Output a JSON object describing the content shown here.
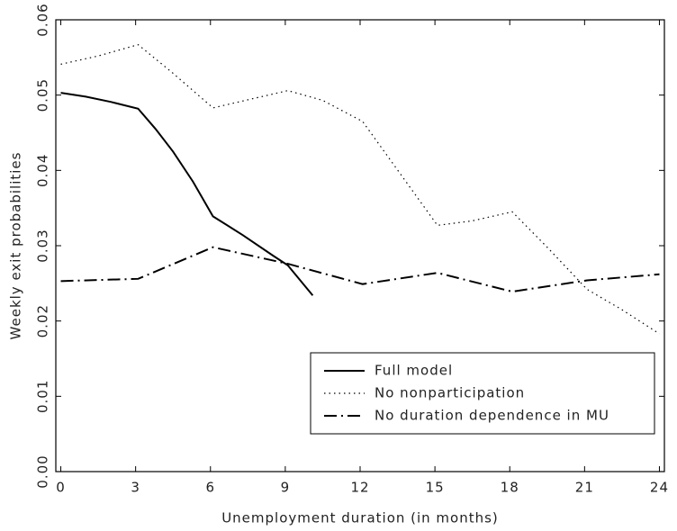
{
  "chart_data": {
    "type": "line",
    "xlabel": "Unemployment duration (in months)",
    "ylabel": "Weekly exit probabilities",
    "xlim": [
      -0.2,
      24.2
    ],
    "ylim": [
      0,
      0.06
    ],
    "xticks": [
      0,
      3,
      6,
      9,
      12,
      15,
      18,
      21,
      24
    ],
    "yticks": [
      {
        "value": 0,
        "label": "0.00"
      },
      {
        "value": 0.01,
        "label": "0.01"
      },
      {
        "value": 0.02,
        "label": "0.02"
      },
      {
        "value": 0.03,
        "label": "0.03"
      },
      {
        "value": 0.04,
        "label": "0.04"
      },
      {
        "value": 0.05,
        "label": "0.05"
      },
      {
        "value": 0.06,
        "label": "0.06"
      }
    ],
    "legend": "lower right",
    "series": [
      {
        "name": "Full model",
        "color": "#000000",
        "linestyle": "solid",
        "x": [
          0,
          1,
          2,
          3.1,
          3.8,
          4.5,
          5.3,
          6.1,
          7.3,
          8.5,
          9.1,
          10.1
        ],
        "values": [
          0.0503,
          0.0498,
          0.0491,
          0.0482,
          0.0455,
          0.0425,
          0.0385,
          0.0339,
          0.0314,
          0.0287,
          0.0274,
          0.0234
        ]
      },
      {
        "name": "No nonparticipation",
        "color": "#000000",
        "linestyle": "dotted",
        "x": [
          0,
          1.5,
          3.1,
          4.5,
          6.1,
          9.1,
          10.5,
          12.1,
          15.1,
          16.5,
          18.1,
          19.5,
          21.1,
          22.5,
          24
        ],
        "values": [
          0.0541,
          0.0552,
          0.0567,
          0.0529,
          0.0483,
          0.0506,
          0.0493,
          0.0465,
          0.0327,
          0.0333,
          0.0345,
          0.0298,
          0.0242,
          0.0215,
          0.0183
        ]
      },
      {
        "name": "No duration dependence in MU",
        "color": "#000000",
        "linestyle": "dashdot",
        "x": [
          0,
          3.1,
          6.1,
          9.1,
          12.1,
          15.1,
          18.1,
          21.1,
          24
        ],
        "values": [
          0.0253,
          0.0256,
          0.0298,
          0.0276,
          0.0249,
          0.0264,
          0.0239,
          0.0254,
          0.0262
        ]
      }
    ]
  }
}
